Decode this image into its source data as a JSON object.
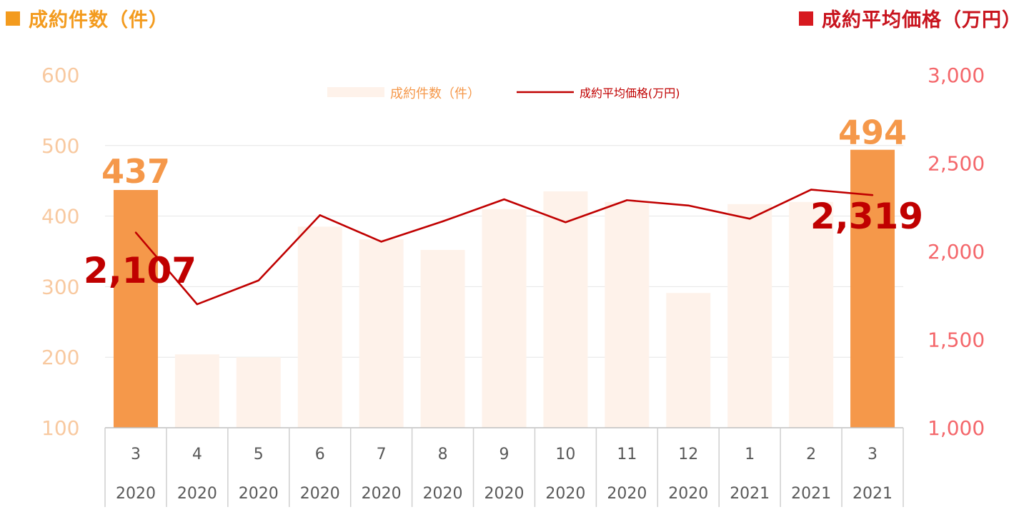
{
  "titles": {
    "left": "成約件数（件）",
    "right": "成約平均価格（万円）"
  },
  "colors": {
    "bar_highlight": "#F5984A",
    "bar_faded": "#FEF2EA",
    "line": "#C00000",
    "left_axis": "#F8C9A0",
    "right_axis": "#F4676B",
    "title_left": "#F39B1E",
    "title_right": "#D7191F",
    "label_count": "#F5984A",
    "label_price": "#C00000"
  },
  "chart_data": {
    "type": "bar+line",
    "categories": [
      {
        "month": "3",
        "year": "2020"
      },
      {
        "month": "4",
        "year": "2020"
      },
      {
        "month": "5",
        "year": "2020"
      },
      {
        "month": "6",
        "year": "2020"
      },
      {
        "month": "7",
        "year": "2020"
      },
      {
        "month": "8",
        "year": "2020"
      },
      {
        "month": "9",
        "year": "2020"
      },
      {
        "month": "10",
        "year": "2020"
      },
      {
        "month": "11",
        "year": "2020"
      },
      {
        "month": "12",
        "year": "2020"
      },
      {
        "month": "1",
        "year": "2021"
      },
      {
        "month": "2",
        "year": "2021"
      },
      {
        "month": "3",
        "year": "2021"
      }
    ],
    "series": [
      {
        "name": "成約件数（件）",
        "type": "bar",
        "axis": "left",
        "values": [
          437,
          204,
          200,
          385,
          367,
          352,
          410,
          435,
          420,
          291,
          417,
          420,
          494
        ],
        "highlight": [
          true,
          false,
          false,
          false,
          false,
          false,
          false,
          false,
          false,
          false,
          false,
          false,
          true
        ]
      },
      {
        "name": "成約平均価格(万円)",
        "type": "line",
        "axis": "right",
        "values": [
          2107,
          1700,
          1835,
          2205,
          2055,
          2170,
          2295,
          2165,
          2290,
          2260,
          2185,
          2350,
          2319
        ]
      }
    ],
    "left_axis": {
      "min": 100,
      "max": 600,
      "ticks": [
        "600",
        "500",
        "400",
        "300",
        "200",
        "100"
      ]
    },
    "right_axis": {
      "min": 1000,
      "max": 3000,
      "ticks": [
        "3,000",
        "2,500",
        "2,000",
        "1,500",
        "1,000"
      ]
    },
    "annotations": [
      {
        "text": "437",
        "series": "count",
        "index": 0
      },
      {
        "text": "494",
        "series": "count",
        "index": 12
      },
      {
        "text": "2,107",
        "series": "price",
        "index": 0
      },
      {
        "text": "2,319",
        "series": "price",
        "index": 12
      }
    ],
    "legend": {
      "placement": "top-center"
    },
    "grid": true
  }
}
